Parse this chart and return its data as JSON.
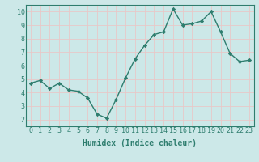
{
  "x": [
    0,
    1,
    2,
    3,
    4,
    5,
    6,
    7,
    8,
    9,
    10,
    11,
    12,
    13,
    14,
    15,
    16,
    17,
    18,
    19,
    20,
    21,
    22,
    23
  ],
  "y": [
    4.7,
    4.9,
    4.3,
    4.7,
    4.2,
    4.1,
    3.6,
    2.4,
    2.1,
    3.5,
    5.1,
    6.5,
    7.5,
    8.3,
    8.5,
    10.2,
    9.0,
    9.1,
    9.3,
    10.0,
    8.5,
    6.9,
    6.3,
    6.4
  ],
  "line_color": "#2e7d6e",
  "marker": "D",
  "markersize": 2.2,
  "linewidth": 1.0,
  "background_color": "#cce8e8",
  "grid_color": "#e8c8c8",
  "xlabel": "Humidex (Indice chaleur)",
  "xlim": [
    -0.5,
    23.5
  ],
  "ylim": [
    1.5,
    10.5
  ],
  "yticks": [
    2,
    3,
    4,
    5,
    6,
    7,
    8,
    9,
    10
  ],
  "xticks": [
    0,
    1,
    2,
    3,
    4,
    5,
    6,
    7,
    8,
    9,
    10,
    11,
    12,
    13,
    14,
    15,
    16,
    17,
    18,
    19,
    20,
    21,
    22,
    23
  ],
  "xlabel_fontsize": 7,
  "tick_fontsize": 6,
  "tick_color": "#2e7d6e",
  "spine_color": "#2e7d6e"
}
